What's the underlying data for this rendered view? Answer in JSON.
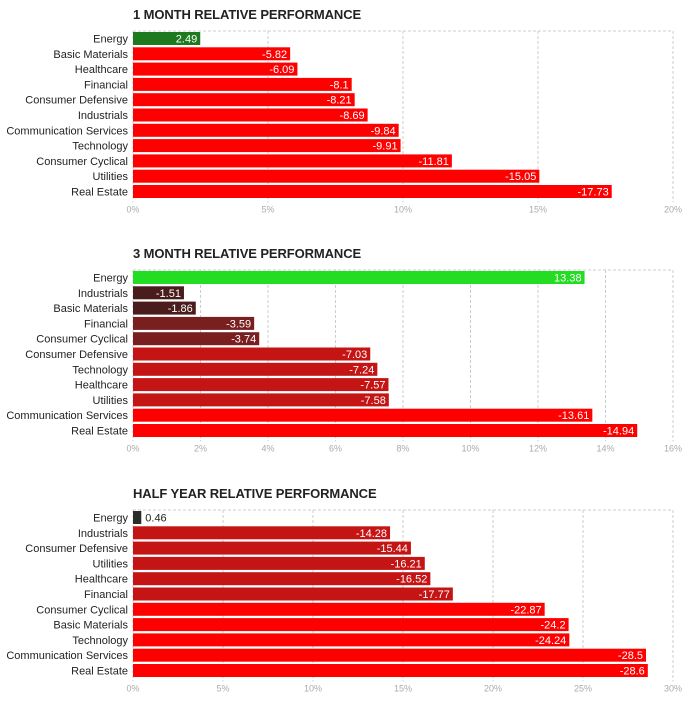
{
  "chart_data": [
    {
      "type": "bar",
      "orientation": "horizontal",
      "title": "1 MONTH RELATIVE PERFORMANCE",
      "categories": [
        "Energy",
        "Basic Materials",
        "Healthcare",
        "Financial",
        "Consumer Defensive",
        "Industrials",
        "Communication Services",
        "Technology",
        "Consumer Cyclical",
        "Utilities",
        "Real Estate"
      ],
      "values": [
        2.49,
        -5.82,
        -6.09,
        -8.1,
        -8.21,
        -8.69,
        -9.84,
        -9.91,
        -11.81,
        -15.05,
        -17.73
      ],
      "colors": [
        "#1e7a1e",
        "#ff0000",
        "#ff0000",
        "#ff0000",
        "#ff0000",
        "#ff0000",
        "#ff0000",
        "#ff0000",
        "#ff0000",
        "#ff0000",
        "#ff0000"
      ],
      "xlim": [
        0,
        20
      ],
      "xticks": [
        "0%",
        "5%",
        "10%",
        "15%",
        "20%"
      ],
      "xlabel": "",
      "ylabel": ""
    },
    {
      "type": "bar",
      "orientation": "horizontal",
      "title": "3 MONTH RELATIVE PERFORMANCE",
      "categories": [
        "Energy",
        "Industrials",
        "Basic Materials",
        "Financial",
        "Consumer Cyclical",
        "Consumer Defensive",
        "Technology",
        "Healthcare",
        "Utilities",
        "Communication Services",
        "Real Estate"
      ],
      "values": [
        13.38,
        -1.51,
        -1.86,
        -3.59,
        -3.74,
        -7.03,
        -7.24,
        -7.57,
        -7.58,
        -13.61,
        -14.94
      ],
      "colors": [
        "#22dd22",
        "#4a1c1c",
        "#4a1c1c",
        "#7a1f1f",
        "#7a1f1f",
        "#c41414",
        "#c41414",
        "#c41414",
        "#c41414",
        "#ff0000",
        "#ff0000"
      ],
      "xlim": [
        0,
        16
      ],
      "xticks": [
        "0%",
        "2%",
        "4%",
        "6%",
        "8%",
        "10%",
        "12%",
        "14%",
        "16%"
      ],
      "xlabel": "",
      "ylabel": ""
    },
    {
      "type": "bar",
      "orientation": "horizontal",
      "title": "HALF YEAR RELATIVE PERFORMANCE",
      "categories": [
        "Energy",
        "Industrials",
        "Consumer Defensive",
        "Utilities",
        "Healthcare",
        "Financial",
        "Consumer Cyclical",
        "Basic Materials",
        "Technology",
        "Communication Services",
        "Real Estate"
      ],
      "values": [
        0.46,
        -14.28,
        -15.44,
        -16.21,
        -16.52,
        -17.77,
        -22.87,
        -24.2,
        -24.24,
        -28.5,
        -28.6
      ],
      "colors": [
        "#2b2b2b",
        "#c41414",
        "#c41414",
        "#c41414",
        "#c41414",
        "#c41414",
        "#ff0000",
        "#ff0000",
        "#ff0000",
        "#ff0000",
        "#ff0000"
      ],
      "xlim": [
        0,
        30
      ],
      "xticks": [
        "0%",
        "5%",
        "10%",
        "15%",
        "20%",
        "25%",
        "30%"
      ],
      "xlabel": "",
      "ylabel": ""
    }
  ]
}
